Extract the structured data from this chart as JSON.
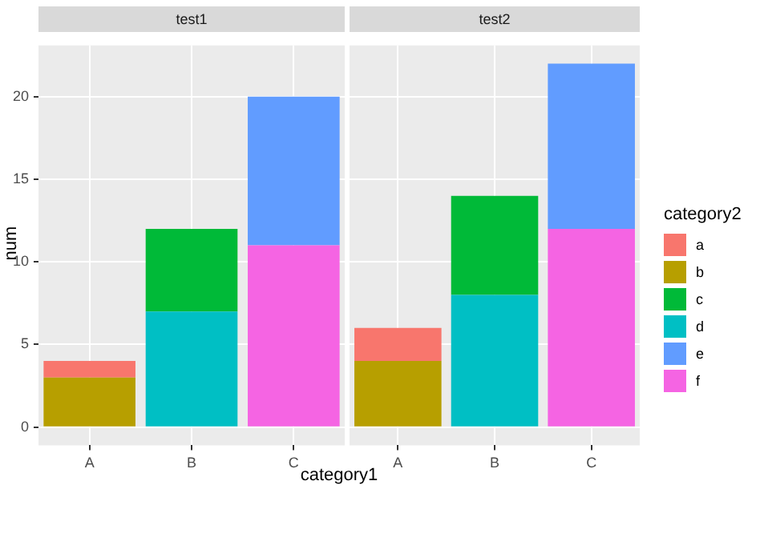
{
  "chart_data": [
    {
      "type": "bar",
      "title": "test1",
      "xlabel": "category1",
      "ylabel": "num",
      "legend_title": "category2",
      "legend": "right",
      "stacked": true,
      "grid": true,
      "categories": [
        "A",
        "B",
        "C"
      ],
      "ylim": [
        -1.1,
        23.1
      ],
      "yticks": [
        0,
        5,
        10,
        15,
        20
      ],
      "series": [
        {
          "name": "f",
          "color": "#f564e3",
          "values": [
            null,
            null,
            11
          ]
        },
        {
          "name": "e",
          "color": "#619cff",
          "values": [
            null,
            null,
            9
          ]
        },
        {
          "name": "d",
          "color": "#00bfc4",
          "values": [
            null,
            7,
            null
          ]
        },
        {
          "name": "c",
          "color": "#00ba38",
          "values": [
            null,
            5,
            null
          ]
        },
        {
          "name": "b",
          "color": "#b79f00",
          "values": [
            3,
            null,
            null
          ]
        },
        {
          "name": "a",
          "color": "#f8766d",
          "values": [
            1,
            null,
            null
          ]
        }
      ]
    },
    {
      "type": "bar",
      "title": "test2",
      "stacked": true,
      "grid": true,
      "tick_labels": "x",
      "categories": [
        "A",
        "B",
        "C"
      ],
      "ylim": [
        -1.1,
        23.1
      ],
      "yticks": [
        0,
        5,
        10,
        15,
        20
      ],
      "series": [
        {
          "color": "#f564e3",
          "values": [
            null,
            null,
            12
          ]
        },
        {
          "color": "#619cff",
          "values": [
            null,
            null,
            10
          ]
        },
        {
          "color": "#00bfc4",
          "values": [
            null,
            8,
            null
          ]
        },
        {
          "color": "#00ba38",
          "values": [
            null,
            6,
            null
          ]
        },
        {
          "color": "#b79f00",
          "values": [
            4,
            null,
            null
          ]
        },
        {
          "color": "#f8766d",
          "values": [
            2,
            null,
            null
          ]
        }
      ]
    }
  ]
}
